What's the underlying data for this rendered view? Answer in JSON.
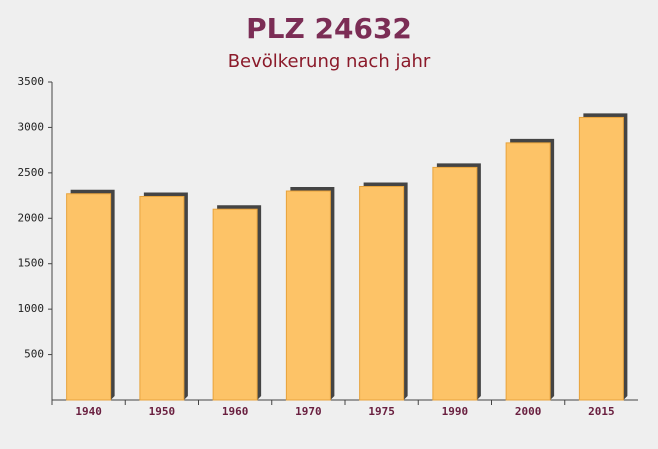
{
  "chart_data": {
    "type": "bar",
    "title": "PLZ 24632",
    "subtitle": "Bevölkerung nach jahr",
    "categories": [
      "1940",
      "1950",
      "1960",
      "1970",
      "1975",
      "1990",
      "2000",
      "2015"
    ],
    "values": [
      2270,
      2240,
      2100,
      2300,
      2350,
      2560,
      2830,
      3110
    ],
    "color": "#fdc367",
    "ylim": [
      0,
      3500
    ],
    "yticks": [
      500,
      1000,
      1500,
      2000,
      2500,
      3000,
      3500
    ],
    "grid": false
  }
}
